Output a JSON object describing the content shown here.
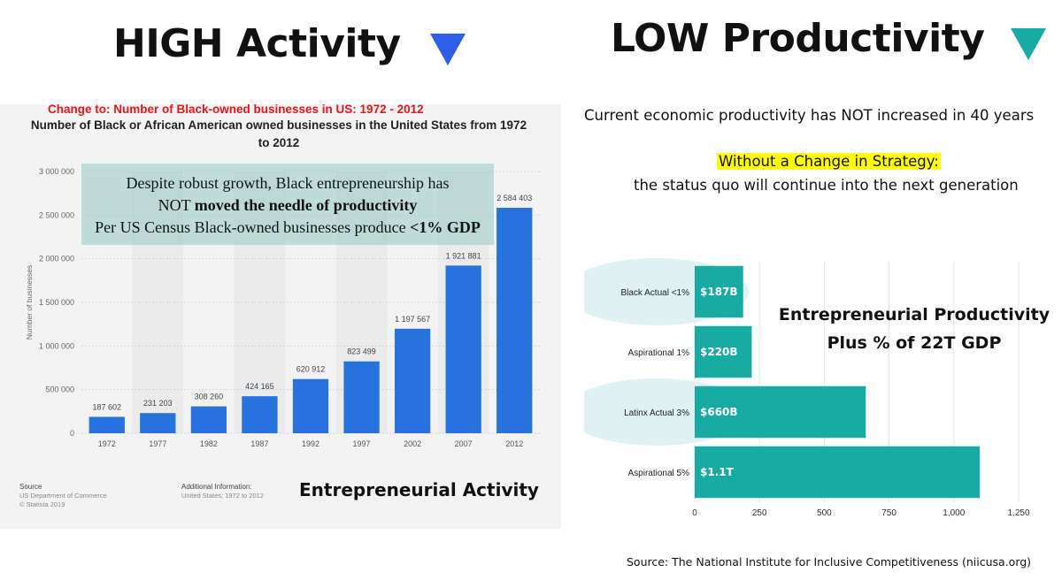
{
  "headings": {
    "left": "HIGH Activity",
    "right": "LOW Productivity",
    "left_marker_color": "#2d5ee8",
    "right_marker_color": "#17aba3"
  },
  "left_panel": {
    "change_note": "Change to:  Number of Black-owned businesses in US: 1972 - 2012",
    "callout": {
      "line1": "Despite robust growth, Black entrepreneurship has",
      "line2_prefix": "NOT ",
      "line2_bold": "moved the needle of productivity",
      "line3_prefix": "Per US Census Black-owned businesses produce ",
      "line3_bold": "<1% GDP"
    },
    "source_label": "Source",
    "source_lines": [
      "US Department of Commerce",
      "© Statista 2019"
    ],
    "additional_label": "Additional Information:",
    "additional_text": "United States; 1972 to 2012",
    "footer_label": "Entrepreneurial Activity"
  },
  "right_panel": {
    "line1": "Current economic productivity has NOT increased in 40 years",
    "highlight": "Without a Change in Strategy:",
    "line3": "the status quo will continue into the next generation",
    "chart_title_line1": "Entrepreneurial Productivity",
    "chart_title_line2": "Plus % of 22T GDP",
    "footer_source": "Source: The National Institute for Inclusive Competitiveness (niicusa.org)"
  },
  "chart_data": [
    {
      "type": "bar",
      "title": "Number of Black or African American owned businesses in the United States from 1972 to 2012",
      "xlabel": "",
      "ylabel": "Number of businesses",
      "categories": [
        "1972",
        "1977",
        "1982",
        "1987",
        "1992",
        "1997",
        "2002",
        "2007",
        "2012"
      ],
      "values": [
        187602,
        231203,
        308260,
        424165,
        620912,
        823499,
        1197567,
        1921881,
        2584403
      ],
      "value_labels": [
        "187 602",
        "231 203",
        "308 260",
        "424 165",
        "620 912",
        "823 499",
        "1 197 567",
        "1 921 881",
        "2 584 403"
      ],
      "ylim": [
        0,
        3000000
      ],
      "yticks": [
        0,
        500000,
        1000000,
        1500000,
        2000000,
        2500000,
        3000000
      ],
      "ytick_labels": [
        "0",
        "500 000",
        "1 000 000",
        "1 500 000",
        "2 000 000",
        "2 500 000",
        "3 000 000"
      ],
      "bar_color": "#2872dd",
      "grid": true
    },
    {
      "type": "bar",
      "orientation": "horizontal",
      "categories": [
        "Black Actual <1%",
        "Aspirational 1%",
        "Latinx Actual 3%",
        "Aspirational 5%"
      ],
      "values": [
        187,
        220,
        660,
        1100
      ],
      "value_labels": [
        "$187B",
        "$220B",
        "$660B",
        "$1.1T"
      ],
      "highlighted": [
        "Black Actual <1%",
        "Latinx Actual 3%"
      ],
      "xlim": [
        0,
        1250
      ],
      "xticks": [
        0,
        250,
        500,
        750,
        1000,
        1250
      ],
      "xtick_labels": [
        "0",
        "250",
        "500",
        "750",
        "1,000",
        "1,250"
      ],
      "bar_color": "#17aba3",
      "highlight_color": "#dff1f2",
      "grid": true
    }
  ]
}
